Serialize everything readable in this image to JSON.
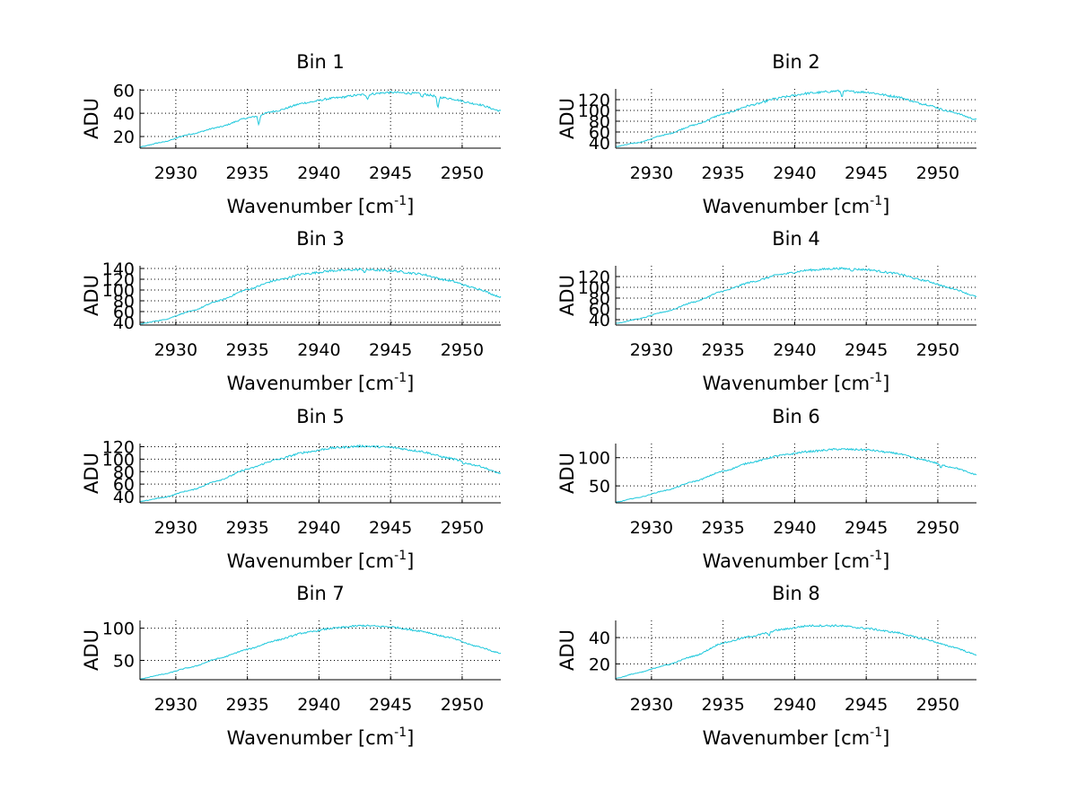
{
  "figure": {
    "background": "#ffffff"
  },
  "style": {
    "line_color": "#1ec8dc",
    "grid_color": "#000000",
    "axis_color": "#000000"
  },
  "chart_data": [
    {
      "type": "line",
      "title": "Bin 1",
      "xlabel_main": "Wavenumber [cm",
      "xlabel_sup": "-1",
      "xlabel_close": "]",
      "ylabel": "ADU",
      "xlim": [
        2927.5,
        2952.7
      ],
      "ylim": [
        10,
        61
      ],
      "xticks": [
        2930,
        2935,
        2940,
        2945,
        2950
      ],
      "yticks": [
        20,
        40,
        60
      ],
      "grid": true,
      "series": [
        {
          "name": "Bin 1",
          "x": [
            2927.5,
            2929,
            2931,
            2933,
            2935,
            2937,
            2939,
            2941,
            2943,
            2945,
            2947,
            2949,
            2951,
            2952.7
          ],
          "y": [
            11,
            15,
            22,
            28,
            36,
            42,
            49,
            53,
            56,
            58,
            57,
            53,
            48,
            42
          ]
        }
      ],
      "dips": [
        [
          2935.8,
          -8
        ],
        [
          2948.3,
          -10
        ],
        [
          2943.4,
          -4
        ],
        [
          2947.2,
          -3
        ]
      ],
      "noise": 1.0
    },
    {
      "type": "line",
      "title": "Bin 2",
      "xlabel_main": "Wavenumber [cm",
      "xlabel_sup": "-1",
      "xlabel_close": "]",
      "ylabel": "ADU",
      "xlim": [
        2927.5,
        2952.7
      ],
      "ylim": [
        30,
        140
      ],
      "xticks": [
        2930,
        2935,
        2940,
        2945,
        2950
      ],
      "yticks": [
        40,
        60,
        80,
        100,
        120
      ],
      "grid": true,
      "series": [
        {
          "name": "Bin 2",
          "x": [
            2927.5,
            2929,
            2931,
            2933,
            2935,
            2937,
            2939,
            2941,
            2943,
            2945,
            2947,
            2949,
            2951,
            2952.7
          ],
          "y": [
            33,
            40,
            55,
            73,
            93,
            110,
            124,
            132,
            136,
            134,
            126,
            112,
            97,
            83
          ]
        }
      ],
      "dips": [
        [
          2943.3,
          -9
        ],
        [
          2938.8,
          -3
        ]
      ],
      "noise": 2.2
    },
    {
      "type": "line",
      "title": "Bin 3",
      "xlabel_main": "Wavenumber [cm",
      "xlabel_sup": "-1",
      "xlabel_close": "]",
      "ylabel": "ADU",
      "xlim": [
        2927.5,
        2952.7
      ],
      "ylim": [
        35,
        145
      ],
      "xticks": [
        2930,
        2935,
        2940,
        2945,
        2950
      ],
      "yticks": [
        40,
        60,
        80,
        100,
        120,
        140
      ],
      "grid": true,
      "series": [
        {
          "name": "Bin 3",
          "x": [
            2927.5,
            2929,
            2931,
            2933,
            2935,
            2937,
            2939,
            2941,
            2943,
            2945,
            2947,
            2949,
            2951,
            2952.7
          ],
          "y": [
            37,
            44,
            60,
            80,
            101,
            118,
            130,
            136,
            138,
            136,
            130,
            118,
            103,
            87
          ]
        }
      ],
      "dips": [
        [
          2943.2,
          -5
        ]
      ],
      "noise": 2.2
    },
    {
      "type": "line",
      "title": "Bin 4",
      "xlabel_main": "Wavenumber [cm",
      "xlabel_sup": "-1",
      "xlabel_close": "]",
      "ylabel": "ADU",
      "xlim": [
        2927.5,
        2952.7
      ],
      "ylim": [
        30,
        140
      ],
      "xticks": [
        2930,
        2935,
        2940,
        2945,
        2950
      ],
      "yticks": [
        40,
        60,
        80,
        100,
        120
      ],
      "grid": true,
      "series": [
        {
          "name": "Bin 4",
          "x": [
            2927.5,
            2929,
            2931,
            2933,
            2935,
            2937,
            2939,
            2941,
            2943,
            2945,
            2947,
            2949,
            2951,
            2952.7
          ],
          "y": [
            33,
            41,
            55,
            73,
            93,
            110,
            124,
            132,
            135,
            133,
            126,
            113,
            98,
            83
          ]
        }
      ],
      "dips": [
        [
          2944.0,
          -3
        ]
      ],
      "noise": 2.0
    },
    {
      "type": "line",
      "title": "Bin 5",
      "xlabel_main": "Wavenumber [cm",
      "xlabel_sup": "-1",
      "xlabel_close": "]",
      "ylabel": "ADU",
      "xlim": [
        2927.5,
        2952.7
      ],
      "ylim": [
        30,
        125
      ],
      "xticks": [
        2930,
        2935,
        2940,
        2945,
        2950
      ],
      "yticks": [
        40,
        60,
        80,
        100,
        120
      ],
      "grid": true,
      "series": [
        {
          "name": "Bin 5",
          "x": [
            2927.5,
            2929,
            2931,
            2933,
            2935,
            2937,
            2939,
            2941,
            2943,
            2945,
            2947,
            2949,
            2951,
            2952.7
          ],
          "y": [
            32,
            38,
            50,
            66,
            84,
            99,
            111,
            118,
            121,
            119,
            113,
            102,
            90,
            77
          ]
        }
      ],
      "dips": [
        [
          2950.1,
          -4
        ]
      ],
      "noise": 1.8
    },
    {
      "type": "line",
      "title": "Bin 6",
      "xlabel_main": "Wavenumber [cm",
      "xlabel_sup": "-1",
      "xlabel_close": "]",
      "ylabel": "ADU",
      "xlim": [
        2927.5,
        2952.7
      ],
      "ylim": [
        20,
        125
      ],
      "xticks": [
        2930,
        2935,
        2940,
        2945,
        2950
      ],
      "yticks": [
        50,
        100
      ],
      "grid": true,
      "series": [
        {
          "name": "Bin 6",
          "x": [
            2927.5,
            2929,
            2931,
            2933,
            2935,
            2937,
            2939,
            2941,
            2943,
            2945,
            2947,
            2949,
            2951,
            2952.7
          ],
          "y": [
            21,
            29,
            42,
            58,
            76,
            92,
            104,
            111,
            115,
            114,
            108,
            96,
            83,
            70
          ]
        }
      ],
      "dips": [
        [
          2950.2,
          -6
        ]
      ],
      "noise": 1.8
    },
    {
      "type": "line",
      "title": "Bin 7",
      "xlabel_main": "Wavenumber [cm",
      "xlabel_sup": "-1",
      "xlabel_close": "]",
      "ylabel": "ADU",
      "xlim": [
        2927.5,
        2952.7
      ],
      "ylim": [
        20,
        112
      ],
      "xticks": [
        2930,
        2935,
        2940,
        2945,
        2950
      ],
      "yticks": [
        50,
        100
      ],
      "grid": true,
      "series": [
        {
          "name": "Bin 7",
          "x": [
            2927.5,
            2929,
            2931,
            2933,
            2935,
            2937,
            2939,
            2941,
            2943,
            2945,
            2947,
            2949,
            2951,
            2952.7
          ],
          "y": [
            21,
            28,
            39,
            53,
            67,
            81,
            93,
            100,
            104,
            102,
            96,
            86,
            72,
            61
          ]
        }
      ],
      "dips": [],
      "noise": 1.5
    },
    {
      "type": "line",
      "title": "Bin 8",
      "xlabel_main": "Wavenumber [cm",
      "xlabel_sup": "-1",
      "xlabel_close": "]",
      "ylabel": "ADU",
      "xlim": [
        2927.5,
        2952.7
      ],
      "ylim": [
        8,
        53
      ],
      "xticks": [
        2930,
        2935,
        2940,
        2945,
        2950
      ],
      "yticks": [
        20,
        40
      ],
      "grid": true,
      "series": [
        {
          "name": "Bin 8",
          "x": [
            2927.5,
            2929,
            2931,
            2933,
            2935,
            2937,
            2939,
            2941,
            2943,
            2945,
            2947,
            2949,
            2951,
            2952.7
          ],
          "y": [
            9,
            13,
            19,
            26,
            36,
            41,
            46,
            49,
            49,
            47,
            44,
            39,
            33,
            27
          ]
        }
      ],
      "dips": [
        [
          2938.2,
          -3
        ]
      ],
      "noise": 0.8
    }
  ]
}
